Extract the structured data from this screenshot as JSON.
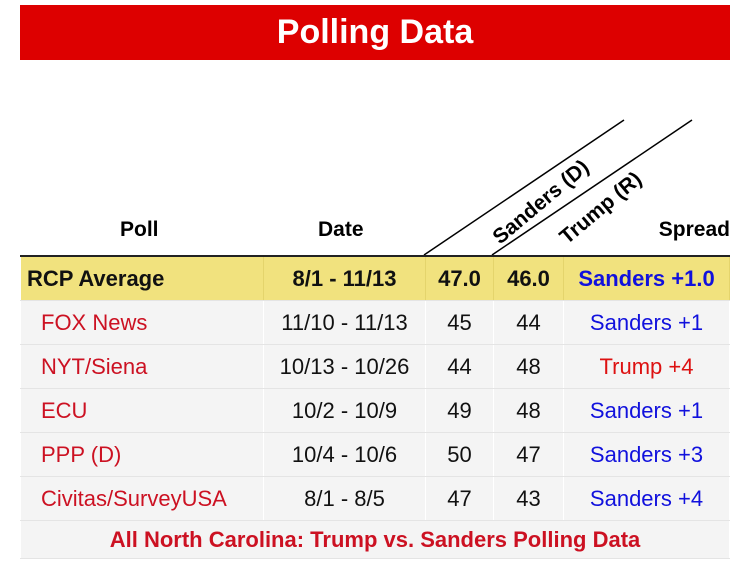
{
  "title": "Polling Data",
  "headers": {
    "poll": "Poll",
    "date": "Date",
    "sanders": "Sanders (D)",
    "trump": "Trump (R)",
    "spread": "Spread"
  },
  "average": {
    "poll": "RCP Average",
    "date": "8/1 - 11/13",
    "sanders": "47.0",
    "trump": "46.0",
    "spread": "Sanders +1.0"
  },
  "rows": [
    {
      "poll": "FOX News",
      "date": "11/10 - 11/13",
      "sanders": "45",
      "trump": "44",
      "spread": "Sanders +1",
      "leader": "sanders"
    },
    {
      "poll": "NYT/Siena",
      "date": "10/13 - 10/26",
      "sanders": "44",
      "trump": "48",
      "spread": "Trump +4",
      "leader": "trump"
    },
    {
      "poll": "ECU",
      "date": "10/2 - 10/9",
      "sanders": "49",
      "trump": "48",
      "spread": "Sanders +1",
      "leader": "sanders"
    },
    {
      "poll": "PPP (D)",
      "date": "10/4 - 10/6",
      "sanders": "50",
      "trump": "47",
      "spread": "Sanders +3",
      "leader": "sanders"
    },
    {
      "poll": "Civitas/SurveyUSA",
      "date": "8/1 - 8/5",
      "sanders": "47",
      "trump": "43",
      "spread": "Sanders +4",
      "leader": "sanders"
    }
  ],
  "footer_link": "All North Carolina: Trump vs. Sanders Polling Data",
  "colors": {
    "title_bg": "#dd0000",
    "average_bg": "#f1e27e",
    "democrat": "#1111dd",
    "republican": "#dd1111"
  }
}
